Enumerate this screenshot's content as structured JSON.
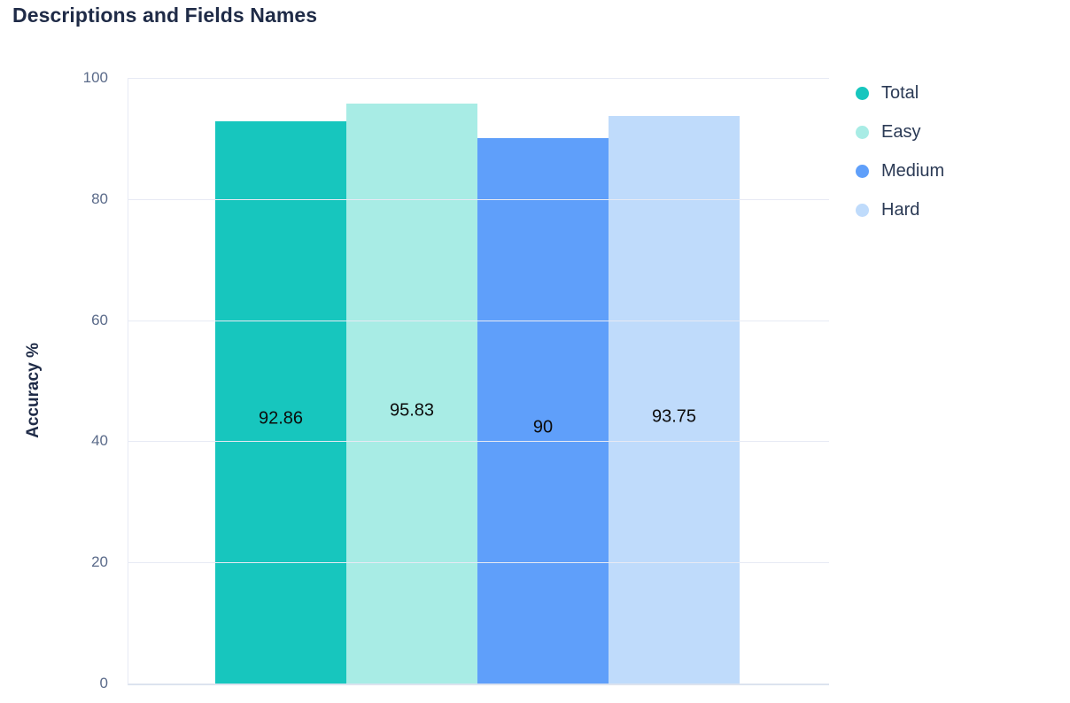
{
  "title": "Descriptions and Fields Names",
  "chart_data": {
    "type": "bar",
    "title": "Descriptions and Fields Names",
    "categories": [
      "Total",
      "Easy",
      "Medium",
      "Hard"
    ],
    "values": [
      92.86,
      95.83,
      90,
      93.75
    ],
    "value_labels": [
      "92.86",
      "95.83",
      "90",
      "93.75"
    ],
    "colors": [
      "#17c6be",
      "#a8ece5",
      "#5f9ffa",
      "#bfdbfb"
    ],
    "xlabel": "",
    "ylabel": "Accuracy %",
    "ylim": [
      0,
      100
    ],
    "yticks": [
      0,
      20,
      40,
      60,
      80,
      100
    ],
    "grid": true,
    "legend_position": "right",
    "legend": [
      {
        "label": "Total",
        "color": "#17c6be"
      },
      {
        "label": "Easy",
        "color": "#a8ece5"
      },
      {
        "label": "Medium",
        "color": "#5f9ffa"
      },
      {
        "label": "Hard",
        "color": "#bfdbfb"
      }
    ]
  },
  "theme": {
    "title_color": "#1f2b47",
    "tick_color": "#5b6b8a",
    "grid_color": "#e7eaf4",
    "axis_color": "#dce3ef",
    "value_label_color": "#0c0c0c",
    "legend_text_color": "#2b3a55"
  }
}
